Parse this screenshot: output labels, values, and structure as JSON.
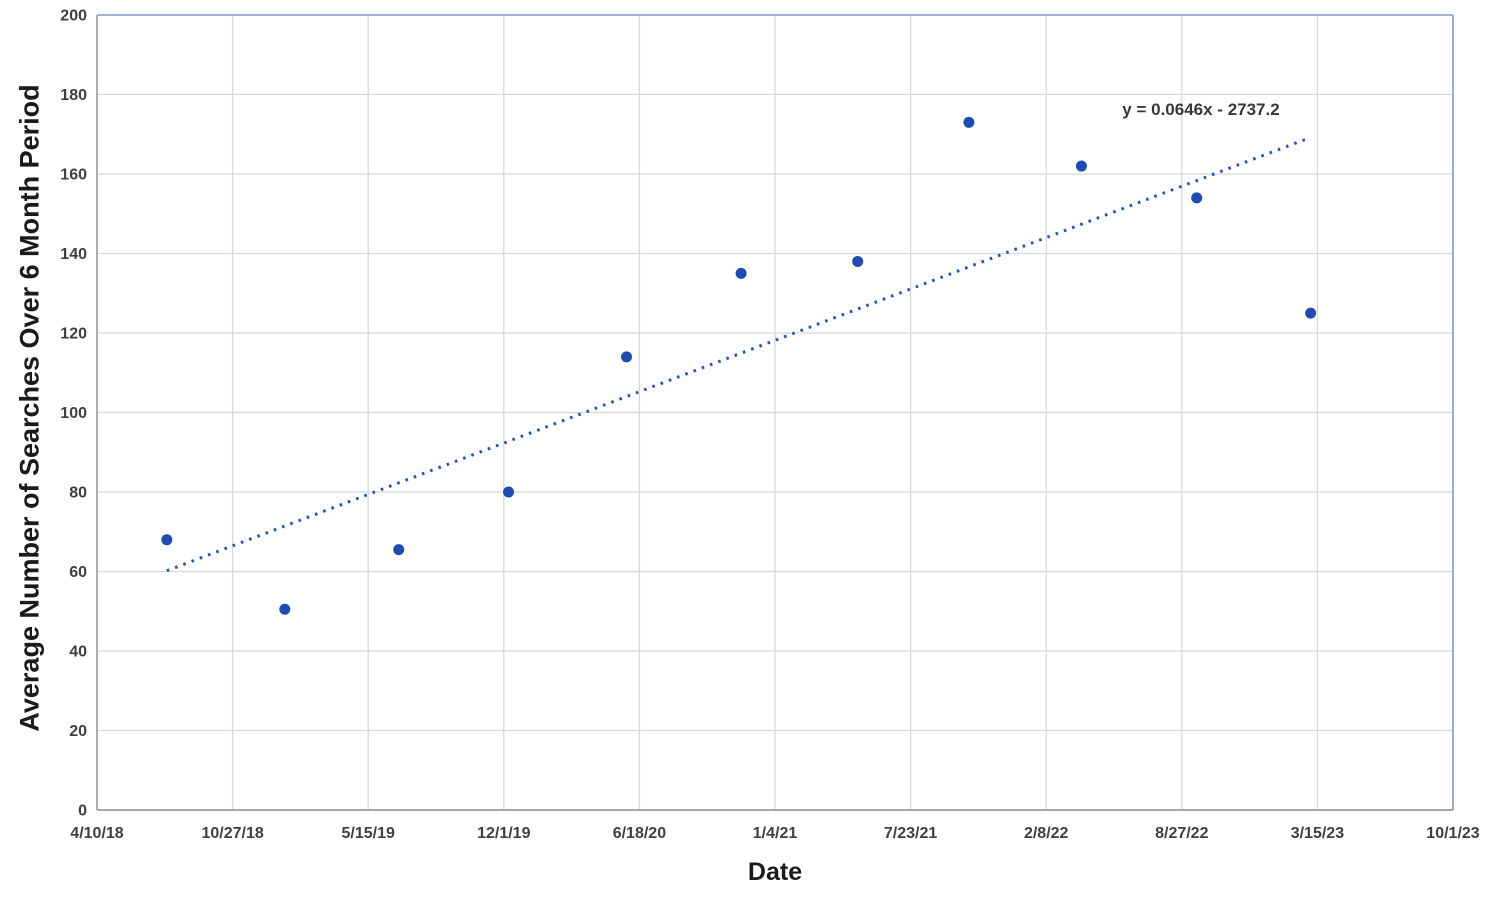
{
  "style": {
    "background": "#ffffff",
    "gridline_color": "#d8d8d8",
    "axis_line_color": "#9a9a9a",
    "plot_border_color": "#8397c8",
    "marker_color": "#1d4cb4",
    "trendline_color": "#2454bd",
    "tick_label_color": "#3f3f3f",
    "title_color": "#1a1a1a"
  },
  "chart_data": {
    "type": "scatter",
    "title": "",
    "xlabel": "Date",
    "ylabel": "Average Number of Searches Over 6 Month Period",
    "grid": true,
    "legend": false,
    "ylim": [
      0,
      200
    ],
    "y_ticks": [
      0,
      20,
      40,
      60,
      80,
      100,
      120,
      140,
      160,
      180,
      200
    ],
    "x_tick_labels": [
      "4/10/18",
      "10/27/18",
      "5/15/19",
      "12/1/19",
      "6/18/20",
      "1/4/21",
      "7/23/21",
      "2/8/22",
      "8/27/22",
      "3/15/23",
      "10/1/23"
    ],
    "x_axis_note": "date axis, major unit 200 days from 4/10/18 to 10/1/23",
    "x_domain_days": [
      0,
      2000
    ],
    "points": [
      {
        "x_days": 103,
        "date_approx": "7/22/18",
        "y": 68
      },
      {
        "x_days": 277,
        "date_approx": "1/12/19",
        "y": 50.5
      },
      {
        "x_days": 445,
        "date_approx": "6/29/19",
        "y": 65.5
      },
      {
        "x_days": 607,
        "date_approx": "12/8/19",
        "y": 80
      },
      {
        "x_days": 781,
        "date_approx": "5/30/20",
        "y": 114
      },
      {
        "x_days": 950,
        "date_approx": "11/15/20",
        "y": 135
      },
      {
        "x_days": 1122,
        "date_approx": "5/6/21",
        "y": 138
      },
      {
        "x_days": 1286,
        "date_approx": "10/17/21",
        "y": 173
      },
      {
        "x_days": 1452,
        "date_approx": "4/1/22",
        "y": 162
      },
      {
        "x_days": 1622,
        "date_approx": "9/18/22",
        "y": 154
      },
      {
        "x_days": 1790,
        "date_approx": "3/5/23",
        "y": 125
      }
    ],
    "trendline": {
      "label": "y = 0.0646x - 2737.2",
      "slope": 0.0646,
      "intercept": -2737.2,
      "style": "dotted",
      "x_start_days": 103,
      "y_start": 60.2,
      "x_end_days": 1790,
      "y_end": 169.2
    }
  }
}
